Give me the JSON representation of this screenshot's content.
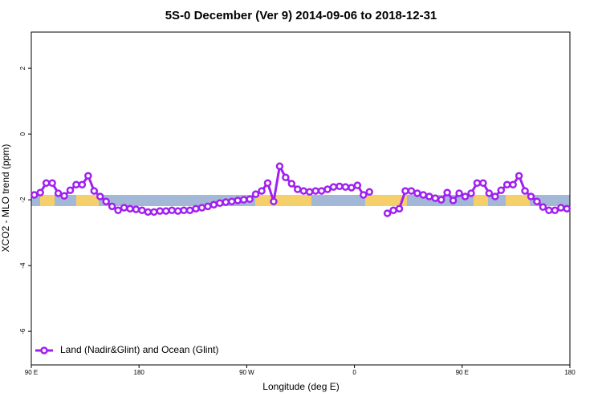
{
  "chart_data": {
    "type": "line",
    "title": "5S-0 December (Ver 9)   2014-09-06 to 2018-12-31",
    "xlabel": "Longitude (deg E)",
    "ylabel": "XCO2 - MLO trend (ppm)",
    "x": [
      92.5,
      97.5,
      102.5,
      107.5,
      112.5,
      117.5,
      122.5,
      127.5,
      132.5,
      137.5,
      142.5,
      147.5,
      152.5,
      157.5,
      162.5,
      167.5,
      172.5,
      177.5,
      182.5,
      187.5,
      192.5,
      197.5,
      202.5,
      207.5,
      212.5,
      217.5,
      222.5,
      227.5,
      232.5,
      237.5,
      242.5,
      247.5,
      252.5,
      257.5,
      262.5,
      267.5,
      272.5,
      277.5,
      282.5,
      287.5,
      292.5,
      297.5,
      302.5,
      307.5,
      312.5,
      317.5,
      322.5,
      327.5,
      332.5,
      337.5,
      342.5,
      347.5,
      352.5,
      357.5,
      362.5,
      367.5,
      372.5,
      377.5,
      382.5,
      387.5,
      392.5,
      397.5,
      402.5,
      407.5,
      412.5,
      417.5,
      422.5,
      427.5,
      432.5,
      437.5,
      442.5,
      447.5,
      452.5,
      457.5,
      462.5,
      467.5,
      472.5,
      477.5,
      482.5,
      487.5,
      492.5,
      497.5,
      502.5,
      507.5,
      512.5,
      517.5,
      522.5,
      527.5,
      532.5,
      537.5
    ],
    "series": [
      {
        "name": "Land (Nadir&Glint) and Ocean (Glint)",
        "color": "#a020f0",
        "values": [
          -1.85,
          -1.78,
          -1.49,
          -1.49,
          -1.8,
          -1.88,
          -1.71,
          -1.54,
          -1.54,
          -1.27,
          -1.73,
          -1.9,
          -2.05,
          -2.2,
          -2.32,
          -2.24,
          -2.27,
          -2.29,
          -2.32,
          -2.37,
          -2.37,
          -2.34,
          -2.34,
          -2.32,
          -2.34,
          -2.32,
          -2.32,
          -2.27,
          -2.24,
          -2.2,
          -2.15,
          -2.1,
          -2.07,
          -2.05,
          -2.02,
          -2.0,
          -1.98,
          -1.83,
          -1.73,
          -1.49,
          -2.05,
          -0.98,
          -1.32,
          -1.51,
          -1.68,
          -1.73,
          -1.76,
          -1.73,
          -1.73,
          -1.68,
          -1.61,
          -1.59,
          -1.61,
          -1.63,
          -1.56,
          -1.85,
          -1.76,
          null,
          null,
          -2.41,
          -2.32,
          -2.27,
          -1.73,
          -1.73,
          -1.8,
          -1.85,
          -1.9,
          -1.95,
          -2.0,
          -1.78,
          -2.02,
          -1.8,
          -1.9,
          -1.8,
          -1.49,
          -1.49,
          -1.8,
          -1.9,
          -1.71,
          -1.54,
          -1.54,
          -1.27,
          -1.73,
          -1.9,
          -2.05,
          -2.22,
          -2.32,
          -2.32,
          -2.24,
          -2.27
        ]
      }
    ],
    "xlim": [
      90,
      540
    ],
    "xticks": [
      {
        "value": 90,
        "label": "90 E"
      },
      180,
      {
        "value": 270,
        "label": "90 W"
      },
      {
        "value": 360,
        "label": "0"
      },
      {
        "value": 450,
        "label": "90 E"
      },
      {
        "value": 540,
        "label": "180"
      }
    ],
    "ylim": [
      -7.02,
      3.1
    ],
    "yticks": [
      -6,
      -4,
      -2,
      0,
      2
    ],
    "legend": "bottomleft"
  }
}
